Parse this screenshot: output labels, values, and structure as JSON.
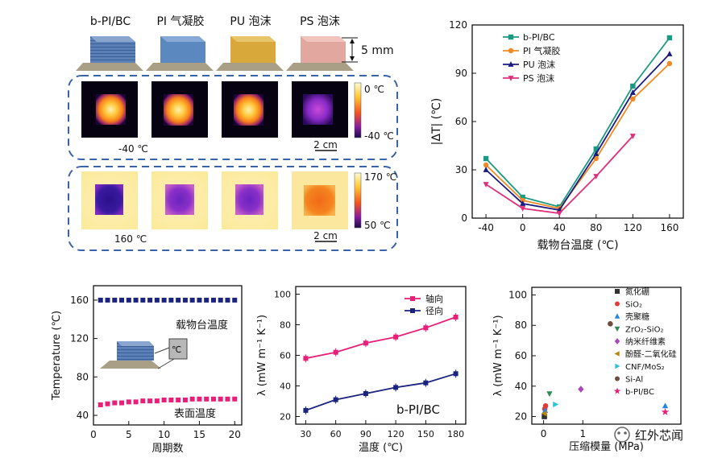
{
  "panel_a": {
    "samples": [
      "b-PI/BC",
      "PI 气凝胶",
      "PU  泡沫",
      "PS  泡沫"
    ],
    "block_colors": [
      "#5a82b8",
      "#5b88bf",
      "#d8a83a",
      "#e2a8a0"
    ],
    "scale_thickness": "5 mm",
    "cold_box": {
      "temp_label": "-40 ℃",
      "scale_top": "0 ℃",
      "scale_bottom": "-40 ℃",
      "scalebar": "2 cm"
    },
    "hot_box": {
      "temp_label": "160 ℃",
      "scale_top": "170 ℃",
      "scale_bottom": "50 ℃",
      "scalebar": "2 cm"
    }
  },
  "chart_data": [
    {
      "type": "line",
      "id": "chart-delta-t",
      "x": [
        -40,
        0,
        40,
        80,
        120,
        160
      ],
      "xlabel": "载物台温度 (℃)",
      "ylabel": "|ΔT| (℃)",
      "xlim": [
        -55,
        175
      ],
      "ylim": [
        0,
        120
      ],
      "xticks": [
        -40,
        0,
        40,
        80,
        120,
        160
      ],
      "yticks": [
        0,
        30,
        60,
        90,
        120
      ],
      "legend_position": "top-left",
      "series": [
        {
          "name": "b-PI/BC",
          "color": "#1a9a82",
          "marker": "square",
          "x": [
            -40,
            0,
            40,
            80,
            120,
            160
          ],
          "values": [
            37,
            13,
            7,
            43,
            82,
            112
          ]
        },
        {
          "name": "PI 气凝胶",
          "color": "#f08a24",
          "marker": "circle",
          "x": [
            -40,
            0,
            40,
            80,
            120,
            160
          ],
          "values": [
            33,
            11,
            6,
            37,
            74,
            96
          ]
        },
        {
          "name": "PU 泡沫",
          "color": "#1a1a80",
          "marker": "triangle",
          "x": [
            -40,
            0,
            40,
            80,
            120,
            160
          ],
          "values": [
            30,
            9,
            5,
            40,
            78,
            102
          ]
        },
        {
          "name": "PS 泡沫",
          "color": "#e0307a",
          "marker": "triangle-down",
          "x": [
            -40,
            0,
            40,
            80,
            120
          ],
          "values": [
            21,
            6,
            3,
            26,
            51
          ]
        }
      ]
    },
    {
      "type": "scatter",
      "id": "chart-cycle",
      "xlabel": "周期数",
      "ylabel": "Temperature (℃)",
      "xlim": [
        0,
        21
      ],
      "ylim": [
        30,
        175
      ],
      "xticks": [
        0,
        5,
        10,
        15,
        20
      ],
      "yticks": [
        40,
        80,
        120,
        160
      ],
      "series": [
        {
          "name": "载物台温度",
          "color": "#1a237e",
          "x": [
            1,
            2,
            3,
            4,
            5,
            6,
            7,
            8,
            9,
            10,
            11,
            12,
            13,
            14,
            15,
            16,
            17,
            18,
            19,
            20
          ],
          "values": [
            160,
            160,
            160,
            160,
            160,
            160,
            160,
            160,
            160,
            160,
            160,
            160,
            160,
            160,
            160,
            160,
            160,
            160,
            160,
            160
          ]
        },
        {
          "name": "表面温度",
          "color": "#e91e78",
          "x": [
            1,
            2,
            3,
            4,
            5,
            6,
            7,
            8,
            9,
            10,
            11,
            12,
            13,
            14,
            15,
            16,
            17,
            18,
            19,
            20
          ],
          "values": [
            51,
            52,
            53,
            53,
            54,
            54,
            55,
            55,
            55,
            56,
            56,
            56,
            56,
            57,
            57,
            57,
            57,
            57,
            57,
            57
          ]
        }
      ],
      "annotations": [
        "载物台温度",
        "表面温度"
      ],
      "inset_label": "℃"
    },
    {
      "type": "line",
      "id": "chart-lambda-temp",
      "title": "b-PI/BC",
      "xlabel": "温度 (℃)",
      "ylabel": "λ (mW m⁻¹ K⁻¹)",
      "xlim": [
        20,
        190
      ],
      "ylim": [
        15,
        105
      ],
      "xticks": [
        30,
        60,
        90,
        120,
        150,
        180
      ],
      "yticks": [
        20,
        40,
        60,
        80,
        100
      ],
      "legend_position": "top-right",
      "series": [
        {
          "name": "轴向",
          "color": "#e91e78",
          "x": [
            30,
            60,
            90,
            120,
            150,
            180
          ],
          "values": [
            58,
            62,
            68,
            72,
            78,
            85
          ]
        },
        {
          "name": "径向",
          "color": "#1a237e",
          "x": [
            30,
            60,
            90,
            120,
            150,
            180
          ],
          "values": [
            24,
            31,
            35,
            39,
            42,
            48
          ]
        }
      ]
    },
    {
      "type": "scatter",
      "id": "chart-lambda-modulus",
      "xlabel": "压缩模量 (MPa)",
      "ylabel": "λ (mW m⁻¹ K⁻¹)",
      "xlim": [
        -0.3,
        3.5
      ],
      "ylim": [
        15,
        105
      ],
      "xticks": [
        0,
        1
      ],
      "yticks": [
        20,
        40,
        60,
        80,
        100
      ],
      "legend_position": "top-right",
      "series": [
        {
          "name": "氮化硼",
          "color": "#333333",
          "marker": "square",
          "x": [
            0.02
          ],
          "values": [
            20
          ]
        },
        {
          "name": "SiO₂",
          "color": "#e53935",
          "marker": "circle",
          "x": [
            0.03,
            0.05
          ],
          "values": [
            25,
            27
          ]
        },
        {
          "name": "壳聚糖",
          "color": "#1e88e5",
          "marker": "triangle",
          "x": [
            0.04
          ],
          "values": [
            24
          ]
        },
        {
          "name": "ZrO₂-SiO₂",
          "color": "#2e8b57",
          "marker": "triangle-down",
          "x": [
            0.15
          ],
          "values": [
            35
          ]
        },
        {
          "name": "纳米纤维素",
          "color": "#ab47bc",
          "marker": "diamond",
          "x": [
            0.95
          ],
          "values": [
            38
          ]
        },
        {
          "name": "酚醛-二氧化硅",
          "color": "#b8860b",
          "marker": "triangle-left",
          "x": [
            0.02
          ],
          "values": [
            22
          ]
        },
        {
          "name": "CNF/MoS₂",
          "color": "#26c6da",
          "marker": "triangle-right",
          "x": [
            0.3
          ],
          "values": [
            28
          ]
        },
        {
          "name": "Si-Al",
          "color": "#6d4c41",
          "marker": "circle",
          "x": [
            1.7
          ],
          "values": [
            81
          ]
        },
        {
          "name": "b-PI/BC",
          "color": "#e91e78",
          "marker": "star",
          "x": [
            3.1
          ],
          "values": [
            23
          ]
        }
      ],
      "extra_points": [
        {
          "series": "壳聚糖",
          "x": 3.1,
          "value": 27
        }
      ]
    }
  ],
  "watermark": "红外芯闻"
}
